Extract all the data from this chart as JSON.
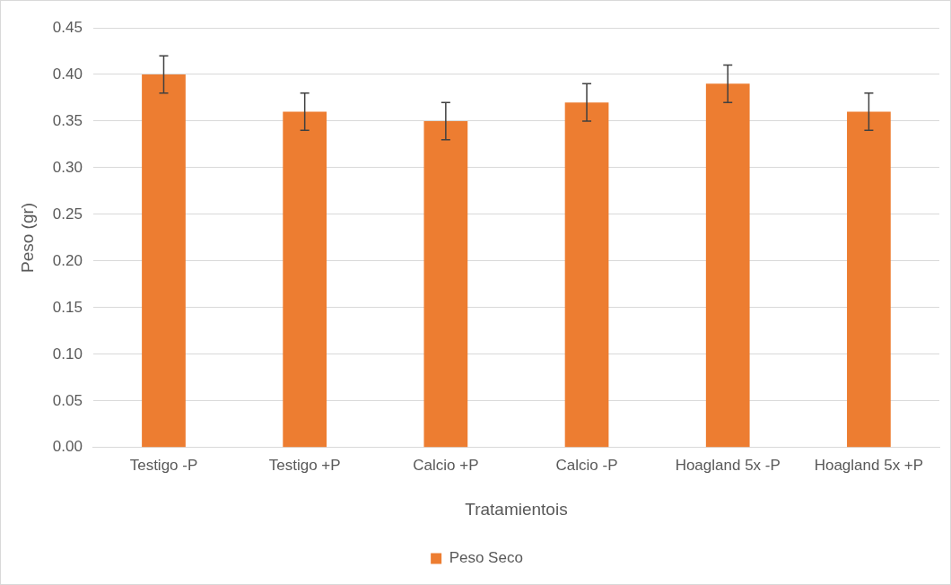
{
  "chart_data": {
    "type": "bar",
    "xlabel": "Tratamientois",
    "ylabel": "Peso (gr)",
    "categories": [
      "Testigo -P",
      "Testigo +P",
      "Calcio +P",
      "Calcio -P",
      "Hoagland 5x -P",
      "Hoagland 5x +P"
    ],
    "series": [
      {
        "name": "Peso Seco",
        "color": "#ed7d31",
        "values": [
          0.4,
          0.36,
          0.35,
          0.37,
          0.39,
          0.36
        ],
        "errors": [
          0.02,
          0.02,
          0.02,
          0.02,
          0.02,
          0.02
        ]
      }
    ],
    "ylim": [
      0,
      0.45
    ],
    "yticks": [
      {
        "value": 0,
        "label": "0.00"
      },
      {
        "value": 0.05,
        "label": "0.05"
      },
      {
        "value": 0.1,
        "label": "0.10"
      },
      {
        "value": 0.15,
        "label": "0.15"
      },
      {
        "value": 0.2,
        "label": "0.20"
      },
      {
        "value": 0.25,
        "label": "0.25"
      },
      {
        "value": 0.3,
        "label": "0.30"
      },
      {
        "value": 0.35,
        "label": "0.35"
      },
      {
        "value": 0.4,
        "label": "0.40"
      },
      {
        "value": 0.45,
        "label": "0.45"
      }
    ],
    "grid": "y",
    "legend": "bottom"
  }
}
